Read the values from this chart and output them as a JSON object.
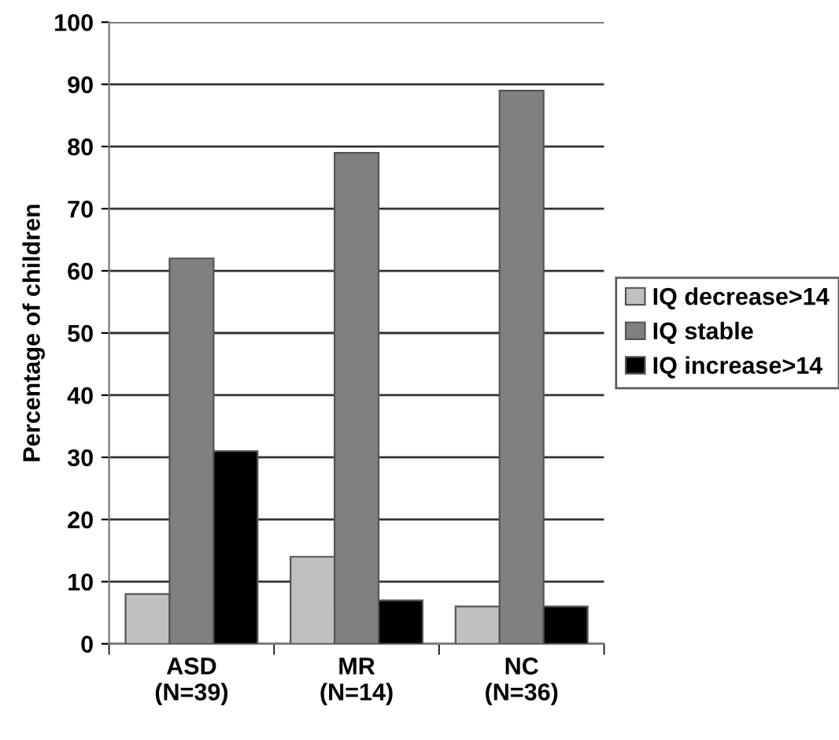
{
  "chart_data": {
    "type": "bar",
    "ylabel": "Percentage of children",
    "categories": [
      "ASD\n(N=39)",
      "MR\n(N=14)",
      "NC\n(N=36)"
    ],
    "series": [
      {
        "name": "IQ decrease>14",
        "color": "#c0c0c0",
        "values": [
          8,
          14,
          6
        ]
      },
      {
        "name": "IQ stable",
        "color": "#808080",
        "values": [
          62,
          79,
          89
        ]
      },
      {
        "name": "IQ increase>14",
        "color": "#000000",
        "values": [
          31,
          7,
          6
        ]
      }
    ],
    "ylim": [
      0,
      100
    ],
    "yticks": [
      0,
      10,
      20,
      30,
      40,
      50,
      60,
      70,
      80,
      90,
      100
    ],
    "grid": "y",
    "legend": "right"
  }
}
